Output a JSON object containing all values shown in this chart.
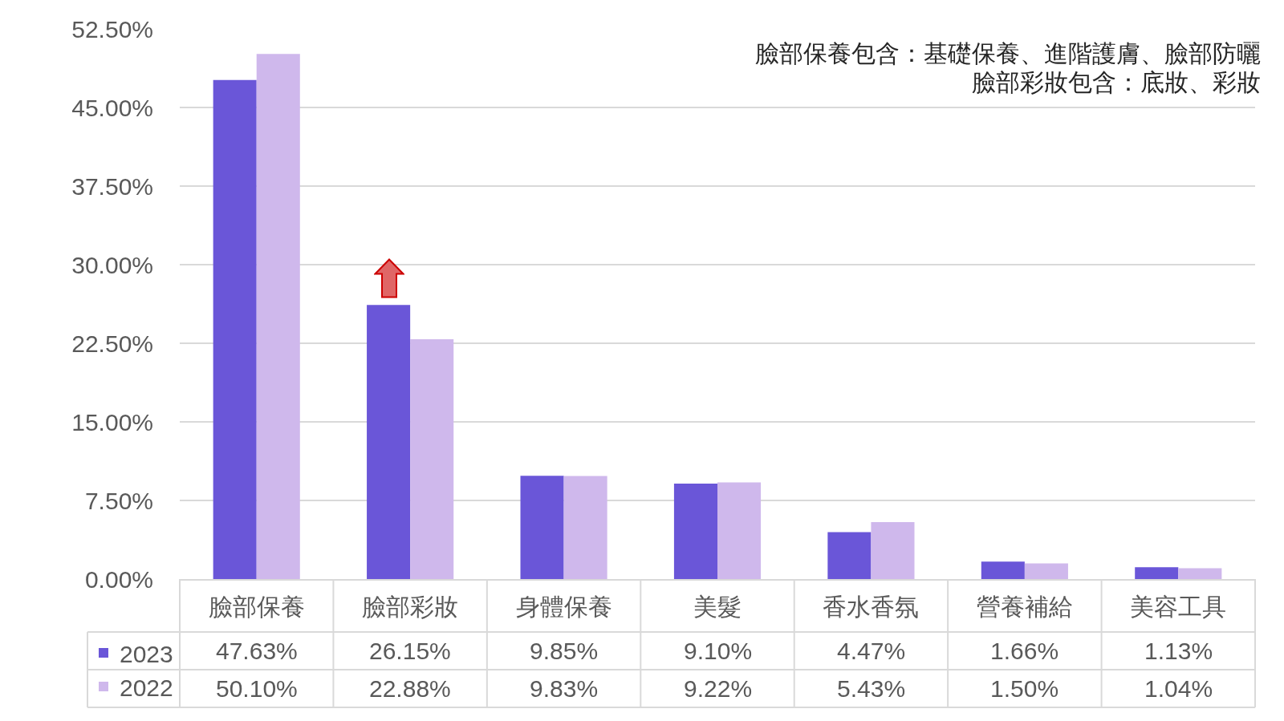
{
  "chart_data": {
    "type": "bar",
    "categories": [
      "臉部保養",
      "臉部彩妝",
      "身體保養",
      "美髮",
      "香水香氛",
      "營養補給",
      "美容工具"
    ],
    "series": [
      {
        "name": "2023",
        "color": "#6a56d8",
        "values": [
          47.63,
          26.15,
          9.85,
          9.1,
          4.47,
          1.66,
          1.13
        ],
        "value_labels": [
          "47.63%",
          "26.15%",
          "9.85%",
          "9.10%",
          "4.47%",
          "1.66%",
          "1.13%"
        ]
      },
      {
        "name": "2022",
        "color": "#cfb8ec",
        "values": [
          50.1,
          22.88,
          9.83,
          9.22,
          5.43,
          1.5,
          1.04
        ],
        "value_labels": [
          "50.10%",
          "22.88%",
          "9.83%",
          "9.22%",
          "5.43%",
          "1.50%",
          "1.04%"
        ]
      }
    ],
    "ylim": [
      0,
      52.5
    ],
    "yticks": [
      {
        "value": 0,
        "label": "0.00%"
      },
      {
        "value": 7.5,
        "label": "7.50%"
      },
      {
        "value": 15,
        "label": "15.00%"
      },
      {
        "value": 22.5,
        "label": "22.50%"
      },
      {
        "value": 30,
        "label": "30.00%"
      },
      {
        "value": 37.5,
        "label": "37.50%"
      },
      {
        "value": 45,
        "label": "45.00%"
      },
      {
        "value": 52.5,
        "label": "52.50%"
      }
    ],
    "grid": "y",
    "legend": "bottom left",
    "annotations": [
      "臉部保養包含：基礎保養、進階護膚、臉部防曬",
      "臉部彩妝包含：底妝、彩妝"
    ]
  }
}
